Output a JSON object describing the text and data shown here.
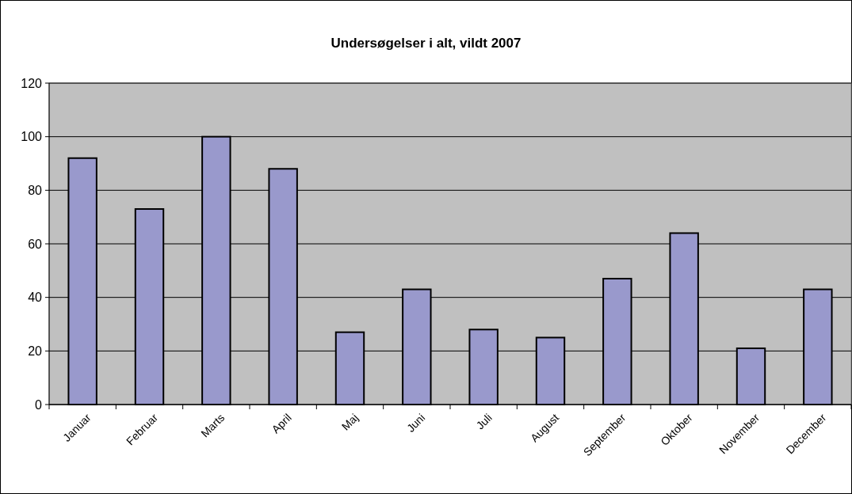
{
  "chart_data": {
    "type": "bar",
    "title": "Undersøgelser i alt, vildt 2007",
    "categories": [
      "Januar",
      "Februar",
      "Marts",
      "April",
      "Maj",
      "Juni",
      "Juli",
      "August",
      "September",
      "Oktober",
      "November",
      "December"
    ],
    "values": [
      92,
      73,
      100,
      88,
      27,
      43,
      28,
      25,
      47,
      64,
      21,
      43
    ],
    "color": "#9999cc",
    "ylim": [
      0,
      120
    ],
    "yticks": [
      0,
      20,
      40,
      60,
      80,
      100,
      120
    ],
    "grid": "y"
  }
}
